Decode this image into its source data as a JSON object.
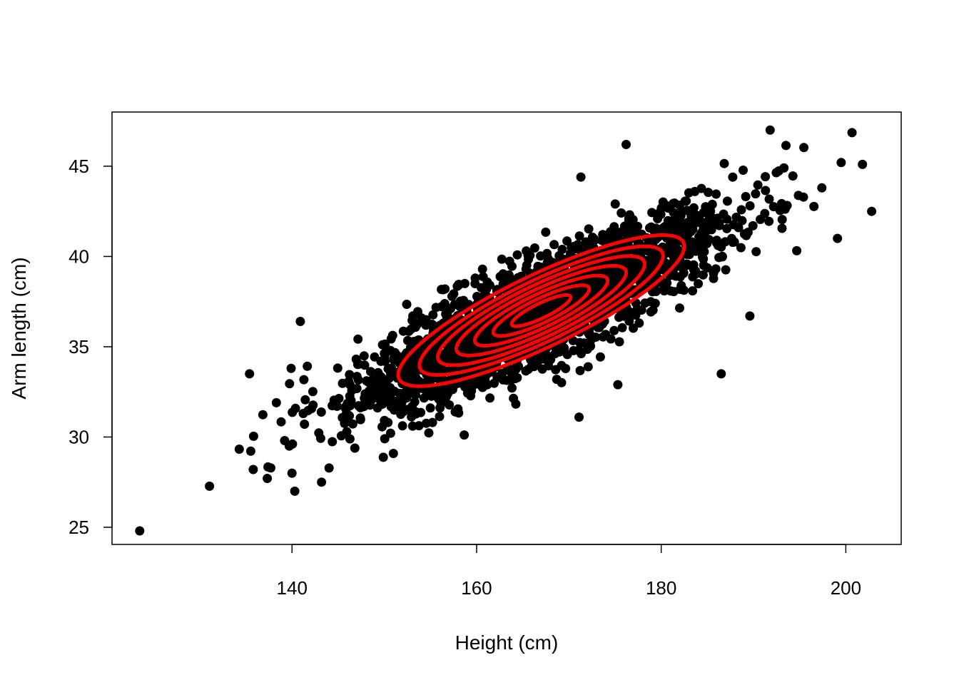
{
  "chart_data": {
    "type": "scatter",
    "title": "",
    "xlabel": "Height (cm)",
    "ylabel": "Arm length (cm)",
    "xlim": [
      120.5,
      206
    ],
    "ylim": [
      24.05,
      48.0
    ],
    "x_ticks": [
      140,
      160,
      180,
      200
    ],
    "y_ticks": [
      25,
      30,
      35,
      40,
      45
    ],
    "grid": false,
    "point_color": "#000000",
    "contour_color": "#ff0000",
    "points": {
      "distribution": "bivariate normal",
      "mean": [
        167,
        37
      ],
      "sd": [
        10,
        2.7
      ],
      "correlation": 0.85,
      "approx_n": 2500,
      "outliers": [
        [
          123.5,
          24.8
        ],
        [
          135.4,
          33.5
        ],
        [
          135.8,
          28.2
        ],
        [
          139.2,
          29.8
        ],
        [
          139.7,
          29.5
        ],
        [
          140.0,
          28.0
        ],
        [
          140.3,
          27.0
        ],
        [
          140.9,
          36.4
        ],
        [
          143.2,
          27.5
        ],
        [
          139.9,
          33.8
        ],
        [
          191.8,
          47.0
        ],
        [
          199.5,
          45.2
        ],
        [
          201.8,
          45.1
        ],
        [
          202.8,
          42.5
        ],
        [
          199.1,
          41.0
        ],
        [
          197.4,
          43.8
        ],
        [
          186.5,
          33.5
        ],
        [
          171.3,
          44.4
        ],
        [
          171.1,
          31.1
        ],
        [
          175.3,
          32.9
        ],
        [
          189.6,
          36.7
        ],
        [
          176.2,
          46.2
        ]
      ]
    },
    "contours": {
      "center": [
        167,
        37
      ],
      "levels": 7,
      "scales": [
        0.32,
        0.52,
        0.72,
        0.92,
        1.12,
        1.32,
        1.55
      ],
      "sd": [
        10,
        2.7
      ],
      "correlation": 0.85
    }
  }
}
